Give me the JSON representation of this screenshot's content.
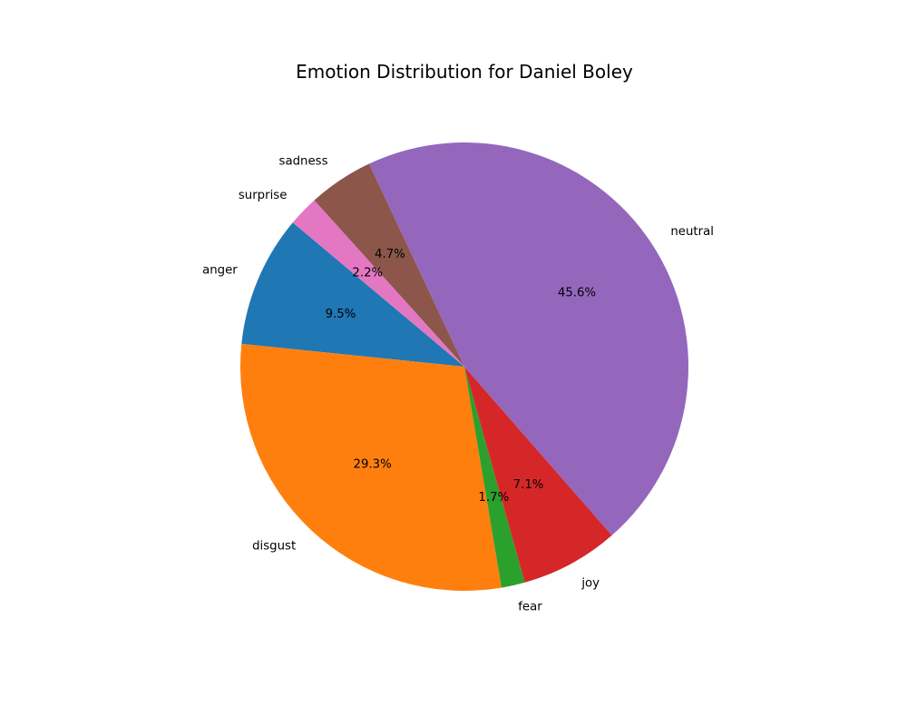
{
  "chart_data": {
    "type": "pie",
    "title": "Emotion Distribution for Daniel Boley",
    "start_angle_deg": 140,
    "direction": "counterclockwise",
    "slices": [
      {
        "label": "anger",
        "value": 9.5,
        "pct_label": "9.5%",
        "color": "#1f77b4"
      },
      {
        "label": "disgust",
        "value": 29.3,
        "pct_label": "29.3%",
        "color": "#ff7f0e"
      },
      {
        "label": "fear",
        "value": 1.7,
        "pct_label": "1.7%",
        "color": "#2ca02c"
      },
      {
        "label": "joy",
        "value": 7.1,
        "pct_label": "7.1%",
        "color": "#d62728"
      },
      {
        "label": "neutral",
        "value": 45.6,
        "pct_label": "45.6%",
        "color": "#9467bd"
      },
      {
        "label": "sadness",
        "value": 4.7,
        "pct_label": "4.7%",
        "color": "#8c564b"
      },
      {
        "label": "surprise",
        "value": 2.2,
        "pct_label": "2.2%",
        "color": "#e377c2"
      }
    ]
  }
}
